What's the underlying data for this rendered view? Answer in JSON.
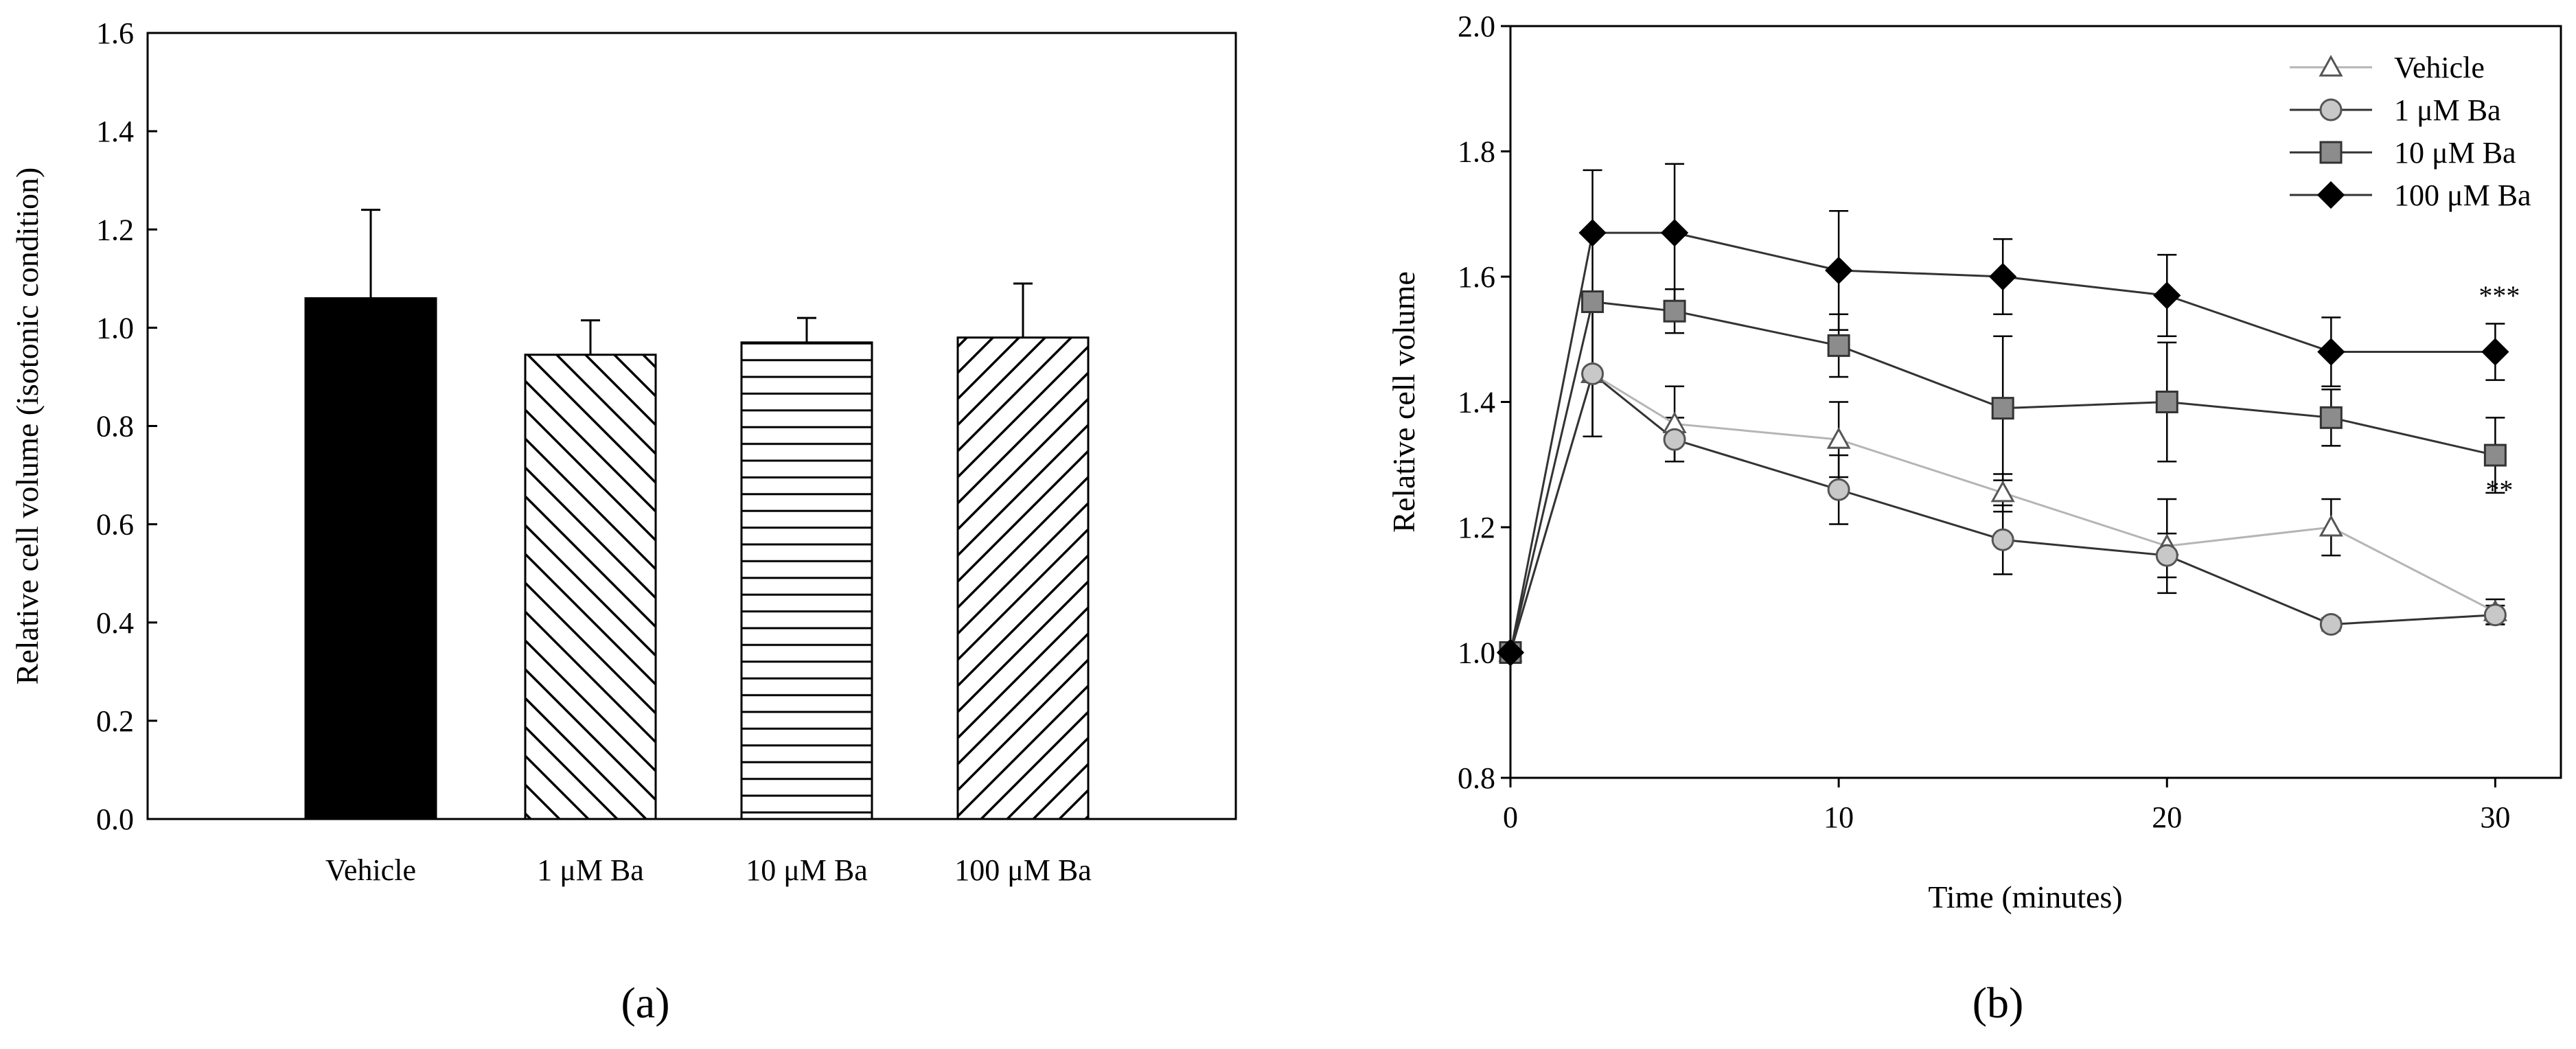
{
  "chart_data": [
    {
      "type": "bar",
      "panel_label": "(a)",
      "categories": [
        "Vehicle",
        "1 μM Ba",
        "10 μM Ba",
        "100 μM Ba"
      ],
      "values": [
        1.06,
        0.945,
        0.97,
        0.98
      ],
      "errors": [
        0.18,
        0.07,
        0.05,
        0.11
      ],
      "patterns": [
        "solid",
        "back-diagonal",
        "horizontal",
        "forward-diagonal"
      ],
      "xlabel": "",
      "ylabel": "Relative cell volume (isotonic condition)",
      "ylim": [
        0,
        1.6
      ],
      "yticks": [
        0.0,
        0.2,
        0.4,
        0.6,
        0.8,
        1.0,
        1.2,
        1.4,
        1.6
      ],
      "ytick_labels": [
        "0.0",
        "0.2",
        "0.4",
        "0.6",
        "0.8",
        "1.0",
        "1.2",
        "1.4",
        "1.6"
      ],
      "grid": false
    },
    {
      "type": "line",
      "panel_label": "(b)",
      "xlabel": "Time (minutes)",
      "ylabel": "Relative cell volume",
      "xlim": [
        0,
        32
      ],
      "ylim": [
        0.8,
        2.0
      ],
      "xticks": [
        0,
        10,
        20,
        30
      ],
      "xtick_labels": [
        "0",
        "10",
        "20",
        "30"
      ],
      "yticks": [
        0.8,
        1.0,
        1.2,
        1.4,
        1.6,
        1.8,
        2.0
      ],
      "ytick_labels": [
        "0.8",
        "1.0",
        "1.2",
        "1.4",
        "1.6",
        "1.8",
        "2.0"
      ],
      "legend_position": "top-right",
      "grid": false,
      "series": [
        {
          "name": "Vehicle",
          "marker": "triangle-open",
          "color": "#b0b0b0",
          "x": [
            0,
            2.5,
            5,
            10,
            15,
            20,
            25,
            30
          ],
          "y": [
            1.0,
            1.445,
            1.365,
            1.34,
            1.255,
            1.17,
            1.2,
            1.065
          ],
          "err": [
            0,
            0.1,
            0.06,
            0.06,
            0.03,
            0.075,
            0.045,
            0.02
          ]
        },
        {
          "name": "1 μM Ba",
          "marker": "circle",
          "color": "#c8c8c8",
          "x": [
            0,
            2.5,
            5,
            10,
            15,
            20,
            25,
            30
          ],
          "y": [
            1.0,
            1.445,
            1.34,
            1.26,
            1.18,
            1.155,
            1.045,
            1.06
          ],
          "err": [
            0,
            0.1,
            0.035,
            0.055,
            0.055,
            0.035,
            0.01,
            0.015
          ]
        },
        {
          "name": "10 μM Ba",
          "marker": "square",
          "color": "#8c8c8c",
          "x": [
            0,
            2.5,
            5,
            10,
            15,
            20,
            25,
            30
          ],
          "y": [
            1.0,
            1.56,
            1.545,
            1.49,
            1.39,
            1.4,
            1.375,
            1.315
          ],
          "err": [
            0,
            0.015,
            0.035,
            0.05,
            0.115,
            0.095,
            0.045,
            0.06
          ]
        },
        {
          "name": "100 μM Ba",
          "marker": "diamond",
          "color": "#000000",
          "x": [
            0,
            2.5,
            5,
            10,
            15,
            20,
            25,
            30
          ],
          "y": [
            1.0,
            1.67,
            1.67,
            1.61,
            1.6,
            1.57,
            1.48,
            1.48
          ],
          "err": [
            0,
            0.1,
            0.11,
            0.095,
            0.06,
            0.065,
            0.055,
            0.045
          ]
        }
      ],
      "annotations": [
        {
          "text": "***",
          "x": 30,
          "y": 1.555
        },
        {
          "text": "**",
          "x": 30,
          "y": 1.245
        }
      ]
    }
  ]
}
